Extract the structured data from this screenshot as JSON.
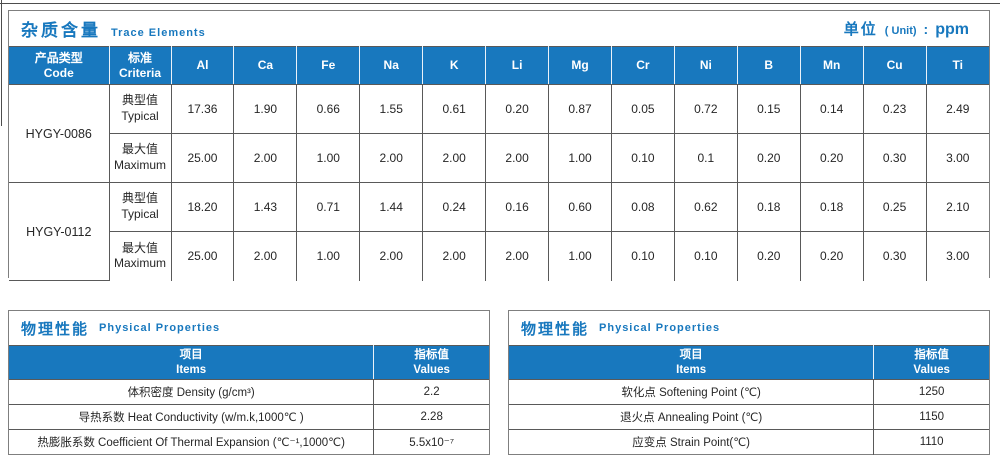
{
  "trace": {
    "title_zh": "杂质含量",
    "title_en": "Trace Elements",
    "unit_zh": "单位",
    "unit_paren": "( Unit)",
    "unit_colon": ":",
    "unit_value": "ppm",
    "col_code_zh": "产品类型",
    "col_code_en": "Code",
    "col_criteria_zh": "标准",
    "col_criteria_en": "Criteria",
    "elements": [
      "Al",
      "Ca",
      "Fe",
      "Na",
      "K",
      "Li",
      "Mg",
      "Cr",
      "Ni",
      "B",
      "Mn",
      "Cu",
      "Ti"
    ],
    "groups": [
      {
        "code": "HYGY-0086",
        "rows": [
          {
            "criteria_zh": "典型值",
            "criteria_en": "Typical",
            "values": [
              "17.36",
              "1.90",
              "0.66",
              "1.55",
              "0.61",
              "0.20",
              "0.87",
              "0.05",
              "0.72",
              "0.15",
              "0.14",
              "0.23",
              "2.49"
            ]
          },
          {
            "criteria_zh": "最大值",
            "criteria_en": "Maximum",
            "values": [
              "25.00",
              "2.00",
              "1.00",
              "2.00",
              "2.00",
              "2.00",
              "1.00",
              "0.10",
              "0.1",
              "0.20",
              "0.20",
              "0.30",
              "3.00"
            ]
          }
        ]
      },
      {
        "code": "HYGY-0112",
        "rows": [
          {
            "criteria_zh": "典型值",
            "criteria_en": "Typical",
            "values": [
              "18.20",
              "1.43",
              "0.71",
              "1.44",
              "0.24",
              "0.16",
              "0.60",
              "0.08",
              "0.62",
              "0.18",
              "0.18",
              "0.25",
              "2.10"
            ]
          },
          {
            "criteria_zh": "最大值",
            "criteria_en": "Maximum",
            "values": [
              "25.00",
              "2.00",
              "1.00",
              "2.00",
              "2.00",
              "2.00",
              "1.00",
              "0.10",
              "0.10",
              "0.20",
              "0.20",
              "0.30",
              "3.00"
            ]
          }
        ]
      }
    ]
  },
  "physical_left": {
    "title_zh": "物理性能",
    "title_en": "Physical Properties",
    "col_items_zh": "项目",
    "col_items_en": "Items",
    "col_values_zh": "指标值",
    "col_values_en": "Values",
    "rows": [
      {
        "item": "体积密度 Density (g/cm³)",
        "value": "2.2"
      },
      {
        "item": "导热系数 Heat Conductivity (w/m.k,1000℃ )",
        "value": "2.28"
      },
      {
        "item": "热膨胀系数 Coefficient Of Thermal Expansion (℃⁻¹,1000℃)",
        "value": "5.5x10⁻⁷"
      }
    ]
  },
  "physical_right": {
    "title_zh": "物理性能",
    "title_en": "Physical Properties",
    "col_items_zh": "项目",
    "col_items_en": "Items",
    "col_values_zh": "指标值",
    "col_values_en": "Values",
    "rows": [
      {
        "item": "软化点 Softening Point (℃)",
        "value": "1250"
      },
      {
        "item": "退火点 Annealing Point (℃)",
        "value": "1150"
      },
      {
        "item": "应变点 Strain Point(℃)",
        "value": "1110"
      }
    ]
  }
}
